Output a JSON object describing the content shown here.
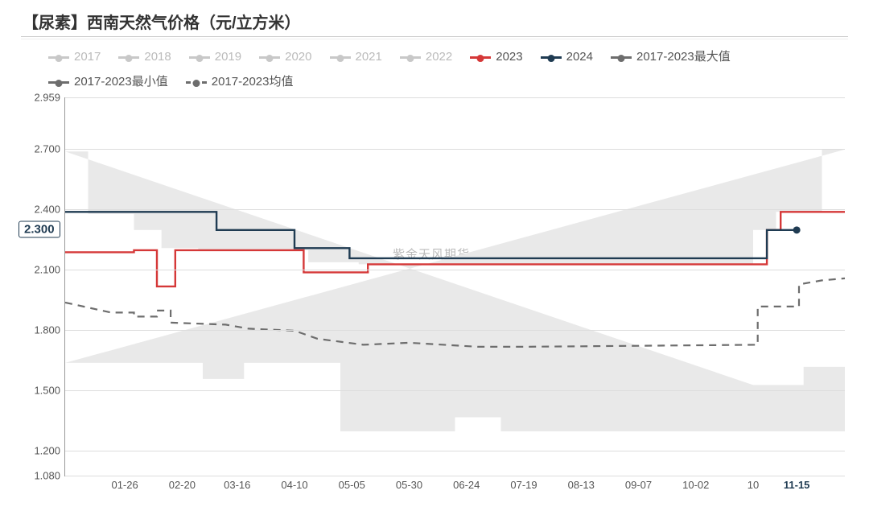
{
  "title": "【尿素】西南天然气价格（元/立方米）",
  "watermark": "紫金天风期货",
  "colors": {
    "inactive": "#c8c8c8",
    "s2023": "#d53838",
    "s2024": "#1f3b52",
    "maxmin": "#6d6d6d",
    "mean": "#6d6d6d",
    "grid": "#dddddd",
    "axis": "#999999",
    "band": "#e9e9e9"
  },
  "legend_inactive": [
    "2017",
    "2018",
    "2019",
    "2020",
    "2021",
    "2022"
  ],
  "legend_active": [
    {
      "label": "2023",
      "key": "s2023",
      "dash": false,
      "dot": true
    },
    {
      "label": "2024",
      "key": "s2024",
      "dash": false,
      "dot": true
    },
    {
      "label": "2017-2023最大值",
      "key": "maxmin",
      "dash": false,
      "dot": true
    },
    {
      "label": "2017-2023最小值",
      "key": "maxmin",
      "dash": false,
      "dot": true
    },
    {
      "label": "2017-2023均值",
      "key": "mean",
      "dash": true,
      "dot": true
    }
  ],
  "y": {
    "min": 1.08,
    "max": 2.959,
    "ticks": [
      2.959,
      2.7,
      2.4,
      2.1,
      1.8,
      1.5,
      1.2,
      1.08
    ],
    "fmt": 3
  },
  "x": {
    "min": 0,
    "max": 340,
    "ticks": [
      {
        "v": 26,
        "t": "01-26"
      },
      {
        "v": 51,
        "t": "02-20"
      },
      {
        "v": 75,
        "t": "03-16"
      },
      {
        "v": 100,
        "t": "04-10"
      },
      {
        "v": 125,
        "t": "05-05"
      },
      {
        "v": 150,
        "t": "05-30"
      },
      {
        "v": 175,
        "t": "06-24"
      },
      {
        "v": 200,
        "t": "07-19"
      },
      {
        "v": 225,
        "t": "08-13"
      },
      {
        "v": 250,
        "t": "09-07"
      },
      {
        "v": 275,
        "t": "10-02"
      },
      {
        "v": 300,
        "t": "10"
      },
      {
        "v": 319,
        "t": "11-15",
        "bold": true
      }
    ]
  },
  "callout": {
    "value": "2.300",
    "y": 2.3
  },
  "band_upper": [
    [
      0,
      2.69
    ],
    [
      10,
      2.69
    ],
    [
      10,
      2.38
    ],
    [
      30,
      2.38
    ],
    [
      30,
      2.3
    ],
    [
      42,
      2.3
    ],
    [
      42,
      2.21
    ],
    [
      58,
      2.21
    ],
    [
      58,
      2.2
    ],
    [
      106,
      2.2
    ],
    [
      106,
      2.14
    ],
    [
      128,
      2.14
    ],
    [
      128,
      2.13
    ],
    [
      300,
      2.13
    ],
    [
      300,
      2.3
    ],
    [
      310,
      2.3
    ],
    [
      310,
      2.39
    ],
    [
      330,
      2.39
    ],
    [
      330,
      2.7
    ],
    [
      340,
      2.7
    ]
  ],
  "band_lower": [
    [
      0,
      1.64
    ],
    [
      60,
      1.64
    ],
    [
      60,
      1.56
    ],
    [
      78,
      1.56
    ],
    [
      78,
      1.64
    ],
    [
      120,
      1.64
    ],
    [
      120,
      1.3
    ],
    [
      170,
      1.3
    ],
    [
      170,
      1.37
    ],
    [
      190,
      1.37
    ],
    [
      190,
      1.3
    ],
    [
      340,
      1.3
    ],
    [
      340,
      1.62
    ],
    [
      322,
      1.62
    ],
    [
      322,
      1.53
    ],
    [
      300,
      1.53
    ]
  ],
  "series": {
    "s2023": {
      "color": "#d53838",
      "width": 2.4,
      "dash": null,
      "pts": [
        [
          0,
          2.19
        ],
        [
          30,
          2.19
        ],
        [
          30,
          2.2
        ],
        [
          40,
          2.2
        ],
        [
          40,
          2.02
        ],
        [
          48,
          2.02
        ],
        [
          48,
          2.2
        ],
        [
          104,
          2.2
        ],
        [
          104,
          2.09
        ],
        [
          132,
          2.09
        ],
        [
          132,
          2.13
        ],
        [
          306,
          2.13
        ],
        [
          306,
          2.3
        ],
        [
          312,
          2.3
        ],
        [
          312,
          2.39
        ],
        [
          340,
          2.39
        ]
      ]
    },
    "s2024": {
      "color": "#1f3b52",
      "width": 2.4,
      "dash": null,
      "pts": [
        [
          0,
          2.39
        ],
        [
          66,
          2.39
        ],
        [
          66,
          2.3
        ],
        [
          100,
          2.3
        ],
        [
          100,
          2.21
        ],
        [
          124,
          2.21
        ],
        [
          124,
          2.16
        ],
        [
          306,
          2.16
        ],
        [
          306,
          2.3
        ],
        [
          319,
          2.3
        ]
      ],
      "endDot": true
    },
    "mean": {
      "color": "#6d6d6d",
      "width": 2.2,
      "dash": "9 7",
      "pts": [
        [
          0,
          1.94
        ],
        [
          20,
          1.89
        ],
        [
          30,
          1.89
        ],
        [
          30,
          1.87
        ],
        [
          40,
          1.87
        ],
        [
          40,
          1.9
        ],
        [
          46,
          1.9
        ],
        [
          46,
          1.84
        ],
        [
          70,
          1.83
        ],
        [
          80,
          1.81
        ],
        [
          100,
          1.8
        ],
        [
          110,
          1.76
        ],
        [
          130,
          1.73
        ],
        [
          150,
          1.74
        ],
        [
          180,
          1.72
        ],
        [
          200,
          1.72
        ],
        [
          302,
          1.73
        ],
        [
          302,
          1.92
        ],
        [
          320,
          1.92
        ],
        [
          320,
          2.03
        ],
        [
          330,
          2.05
        ],
        [
          340,
          2.06
        ]
      ]
    }
  }
}
